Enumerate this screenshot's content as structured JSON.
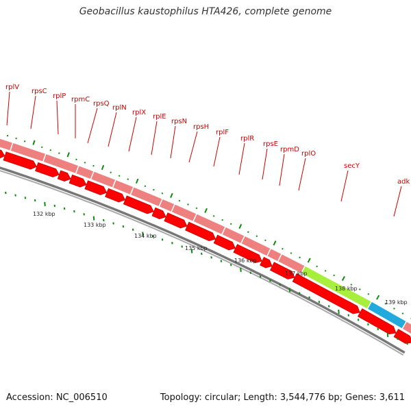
{
  "title": "Geobacillus kaustophilus HTA426, complete genome",
  "accession_text": "Accession: NC_006510",
  "stats_text": "Topology: circular; Length: 3,544,776 bp; Genes: 3,611",
  "colors": {
    "cds": "#ff0000",
    "gene_block": "#ee8080",
    "secY_block": "#a8ee3c",
    "adk_block": "#22aadd",
    "backbone": "#777777",
    "tick": "#118811",
    "label": "#cc0000"
  },
  "gene_labels": [
    "rplV",
    "rpsC",
    "rplP",
    "rpmC",
    "rpsQ",
    "rplN",
    "rplX",
    "rplE",
    "rpsN",
    "rpsH",
    "rplF",
    "rplR",
    "rpsE",
    "rpmD",
    "rplO",
    "secY",
    "adk"
  ],
  "scale_labels": [
    "132 kbp",
    "133 kbp",
    "134 kbp",
    "135 kbp",
    "136 kbp",
    "137 kbp",
    "138 kbp",
    "139 kbp"
  ]
}
